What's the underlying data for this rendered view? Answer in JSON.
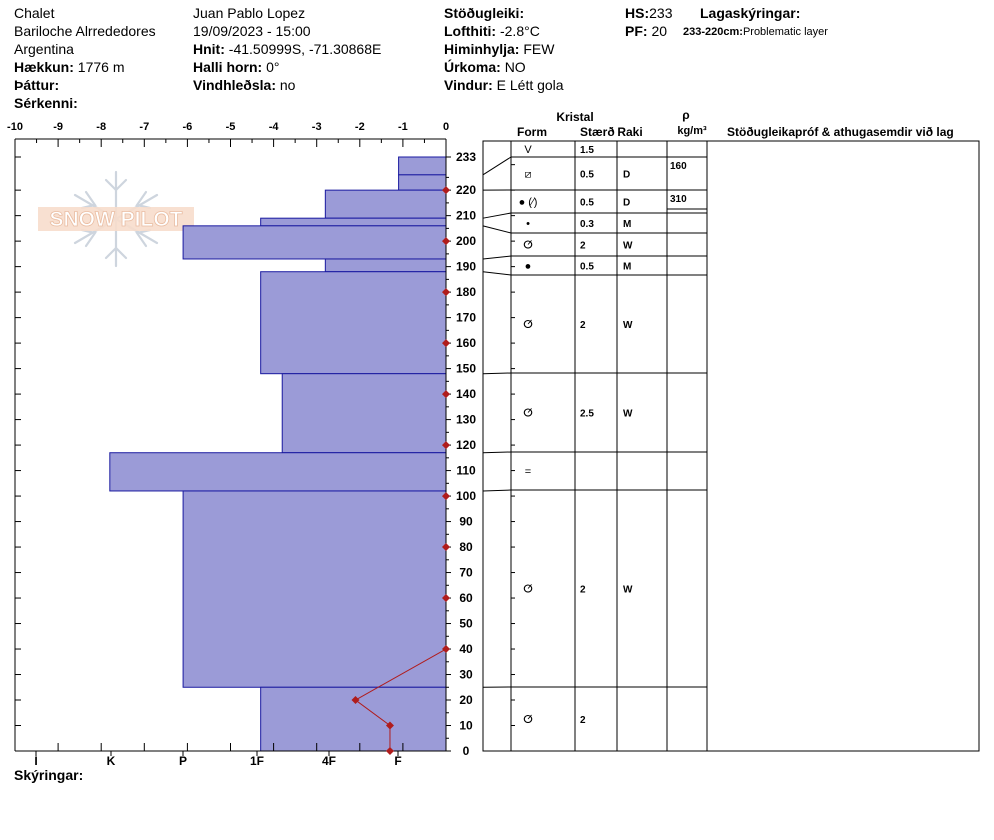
{
  "header": {
    "location": "Chalet",
    "region": "Bariloche Alrrededores",
    "country": "Argentina",
    "elevation_label": "Hækkun:",
    "elevation_value": "1776 m",
    "aspect_label": "Þáttur:",
    "features_label": "Sérkenni:",
    "observer": "Juan Pablo  Lopez",
    "datetime": "19/09/2023 - 15:00",
    "coords_label": "Hnit:",
    "coords_value": "-41.50999S, -71.30868E",
    "slope_label": "Halli horn:",
    "slope_value": "0°",
    "wind_loading_label": "Vindhleðsla:",
    "wind_loading_value": "no",
    "stability_label": "Stöðugleiki:",
    "air_temp_label": "Lofthiti:",
    "air_temp_value": "-2.8°C",
    "sky_label": "Himinhylja:",
    "sky_value": "FEW",
    "precip_label": "Úrkoma:",
    "precip_value": "NO",
    "wind_label": "Vindur:",
    "wind_value": "E Létt gola",
    "hs_label": "HS:",
    "hs_value": "233",
    "pf_label": "PF:",
    "pf_value": "20",
    "layer_notes_label": "Lagaskýringar:",
    "layer_note_range": "233-220cm:",
    "layer_note_text": "Problematic layer"
  },
  "logo_text": "SNOW PILOT",
  "legend_label": "Skýringar:",
  "table_headers": {
    "kristal": "Kristal",
    "form": "Form",
    "staerd": "Stærð",
    "raki": "Raki",
    "rho": "ρ",
    "rho_unit": "kg/m³",
    "tests": "Stöðugleikapróf & athugasemdir við lag"
  },
  "colors": {
    "hardness_fill": "#9b9bd7",
    "hardness_stroke": "#1a1aa0",
    "temp_line": "#b01c1c"
  },
  "chart_data": {
    "type": "profile",
    "top_ticks": [
      "-10",
      "-9",
      "-8",
      "-7",
      "-6",
      "-5",
      "-4",
      "-3",
      "-2",
      "-1",
      "0"
    ],
    "temp_range": [
      -10,
      0
    ],
    "hardness_labels": [
      "I",
      "K",
      "P",
      "1F",
      "4F",
      "F"
    ],
    "depth_range": [
      0,
      233
    ],
    "depth_ticks": [
      "0",
      "10",
      "20",
      "30",
      "40",
      "50",
      "60",
      "70",
      "80",
      "90",
      "100",
      "110",
      "120",
      "130",
      "140",
      "150",
      "160",
      "170",
      "180",
      "190",
      "200",
      "210",
      "220",
      "233"
    ],
    "layers": [
      {
        "top": 233,
        "bottom": 226,
        "hardness_temp_units": -1.1,
        "form": "V",
        "size": "1.5",
        "moisture": ""
      },
      {
        "top": 226,
        "bottom": 220,
        "hardness_temp_units": -1.1,
        "form": "⧄",
        "size": "0.5",
        "moisture": "D"
      },
      {
        "top": 220,
        "bottom": 209,
        "hardness_temp_units": -2.8,
        "form": "● (⁄)",
        "size": "0.5",
        "moisture": "D"
      },
      {
        "top": 209,
        "bottom": 206,
        "hardness_temp_units": -4.3,
        "form": "•",
        "size": "0.3",
        "moisture": "M"
      },
      {
        "top": 206,
        "bottom": 193,
        "hardness_temp_units": -6.1,
        "form": "ⵚ",
        "size": "2",
        "moisture": "W"
      },
      {
        "top": 193,
        "bottom": 188,
        "hardness_temp_units": -2.8,
        "form": "●",
        "size": "0.5",
        "moisture": "M"
      },
      {
        "top": 188,
        "bottom": 148,
        "hardness_temp_units": -4.3,
        "form": "ⵚ",
        "size": "2",
        "moisture": "W"
      },
      {
        "top": 148,
        "bottom": 117,
        "hardness_temp_units": -3.8,
        "form": "ⵚ",
        "size": "2.5",
        "moisture": "W"
      },
      {
        "top": 117,
        "bottom": 102,
        "hardness_temp_units": -7.8,
        "form": "=",
        "size": "",
        "moisture": ""
      },
      {
        "top": 102,
        "bottom": 25,
        "hardness_temp_units": -6.1,
        "form": "ⵚ",
        "size": "2",
        "moisture": "W"
      },
      {
        "top": 25,
        "bottom": 0,
        "hardness_temp_units": -4.3,
        "form": "ⵚ",
        "size": "2",
        "moisture": ""
      }
    ],
    "density": [
      {
        "top": 233,
        "bottom": 220,
        "value": "160"
      },
      {
        "top": 220,
        "bottom": 209,
        "value": "310"
      }
    ],
    "temperature": [
      {
        "depth": 0,
        "temp": -1.3
      },
      {
        "depth": 10,
        "temp": -1.3
      },
      {
        "depth": 20,
        "temp": -2.1
      },
      {
        "depth": 40,
        "temp": 0
      },
      {
        "depth": 60,
        "temp": 0
      },
      {
        "depth": 80,
        "temp": 0
      },
      {
        "depth": 100,
        "temp": 0
      },
      {
        "depth": 120,
        "temp": 0
      },
      {
        "depth": 140,
        "temp": 0
      },
      {
        "depth": 160,
        "temp": 0
      },
      {
        "depth": 180,
        "temp": 0
      },
      {
        "depth": 200,
        "temp": 0
      },
      {
        "depth": 220,
        "temp": 0
      }
    ]
  }
}
